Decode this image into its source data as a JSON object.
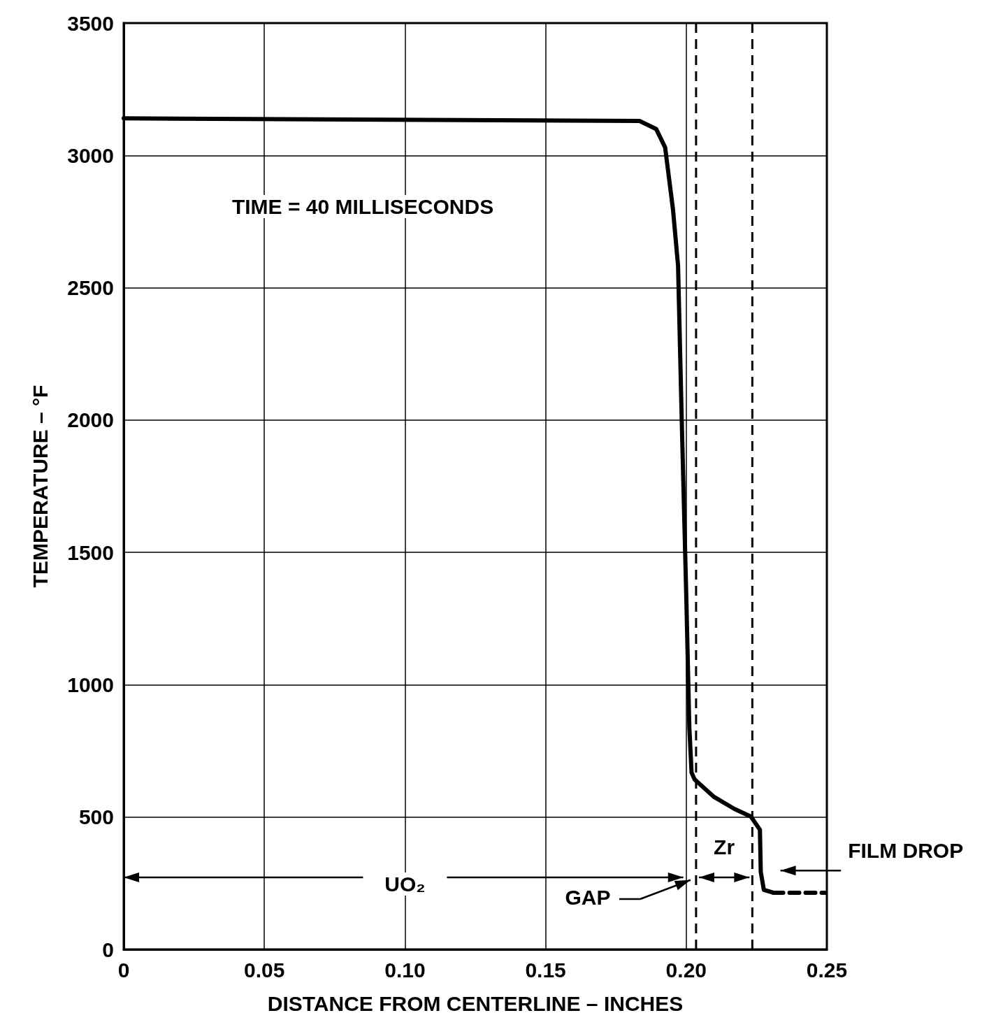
{
  "chart_data": {
    "type": "line",
    "xlabel": "DISTANCE FROM CENTERLINE – INCHES",
    "ylabel": "TEMPERATURE – °F",
    "annotations": [
      "TIME = 40 MILLISECONDS",
      "UO₂",
      "GAP",
      "Zr",
      "FILM DROP"
    ],
    "series": [
      {
        "color": "#000000",
        "line_style": "solid",
        "x": [
          0,
          0.1834,
          0.1893,
          0.1925,
          0.1953,
          0.1971,
          0.1984,
          0.2,
          0.2011,
          0.2019,
          0.203,
          0.2099,
          0.2171,
          0.223,
          0.2262,
          0.2265,
          0.2276,
          0.231
        ],
        "values": [
          3140,
          3130,
          3100,
          3030,
          2795,
          2583,
          2002,
          1342,
          840,
          668,
          642,
          576,
          531,
          502,
          452,
          293,
          225,
          214
        ]
      },
      {
        "color": "#000000",
        "line_style": "dashed",
        "x": [
          0.231,
          0.2494
        ],
        "values": [
          214,
          214
        ]
      }
    ],
    "xlim": [
      0,
      0.25
    ],
    "xticks": [
      0,
      0.05,
      {
        "value": 0.1,
        "label": "0.10"
      },
      0.15,
      {
        "value": 0.2,
        "label": "0.20"
      },
      0.25
    ],
    "ylim": [
      0,
      3500
    ],
    "yticks": [
      0,
      500,
      1000,
      1500,
      2000,
      2500,
      3000,
      3500
    ],
    "ref_lines": [
      {
        "axis": "x",
        "value": 0.2035,
        "color": "#000000",
        "line_style": "dashed"
      },
      {
        "axis": "x",
        "value": 0.2235,
        "color": "#000000",
        "line_style": "dashed"
      }
    ],
    "grid": true,
    "marker": "none"
  }
}
